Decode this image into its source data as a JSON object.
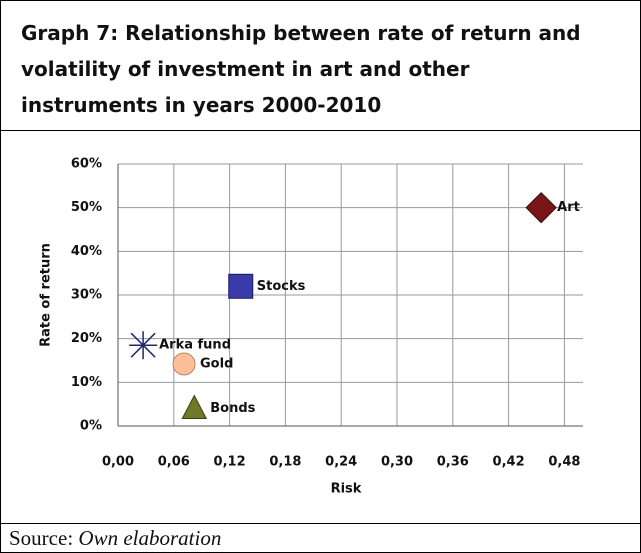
{
  "chart_data": {
    "type": "scatter",
    "title": "Graph 7: Relationship between rate of return and volatility of investment in art and other instruments in years 2000-2010",
    "x_label": "Risk",
    "y_label": "Rate of return",
    "xlim": [
      0,
      0.5
    ],
    "ylim": [
      0,
      60
    ],
    "xticks": [
      {
        "value": 0,
        "label": "0,00"
      },
      {
        "value": 0.06,
        "label": "0,06"
      },
      {
        "value": 0.12,
        "label": "0,12"
      },
      {
        "value": 0.18,
        "label": "0,18"
      },
      {
        "value": 0.24,
        "label": "0,24"
      },
      {
        "value": 0.3,
        "label": "0,30"
      },
      {
        "value": 0.36,
        "label": "0,36"
      },
      {
        "value": 0.42,
        "label": "0,42"
      },
      {
        "value": 0.48,
        "label": "0,48"
      }
    ],
    "yticks": [
      {
        "value": 0,
        "label": "0%"
      },
      {
        "value": 10,
        "label": "10%"
      },
      {
        "value": 20,
        "label": "20%"
      },
      {
        "value": 30,
        "label": "30%"
      },
      {
        "value": 40,
        "label": "40%"
      },
      {
        "value": 50,
        "label": "50%"
      },
      {
        "value": 60,
        "label": "60%"
      }
    ],
    "grid": true,
    "series": [
      {
        "name": "Art",
        "color": "#7a1515",
        "marker": "diamond",
        "x": [
          0.455
        ],
        "values": [
          50
        ]
      },
      {
        "name": "Stocks",
        "color": "#3a3aa8",
        "marker": "square",
        "x": [
          0.132
        ],
        "values": [
          32
        ]
      },
      {
        "name": "Arka fund",
        "color": "#1f2a6b",
        "marker": "star",
        "x": [
          0.027
        ],
        "values": [
          18.5
        ]
      },
      {
        "name": "Gold",
        "color": "#fbbf99",
        "marker": "circle",
        "x": [
          0.071
        ],
        "values": [
          14.2
        ]
      },
      {
        "name": "Bonds",
        "color": "#6e7a2a",
        "marker": "triangle",
        "x": [
          0.082
        ],
        "values": [
          4
        ]
      }
    ]
  },
  "source_label": "Source:",
  "source_text": "Own elaboration"
}
